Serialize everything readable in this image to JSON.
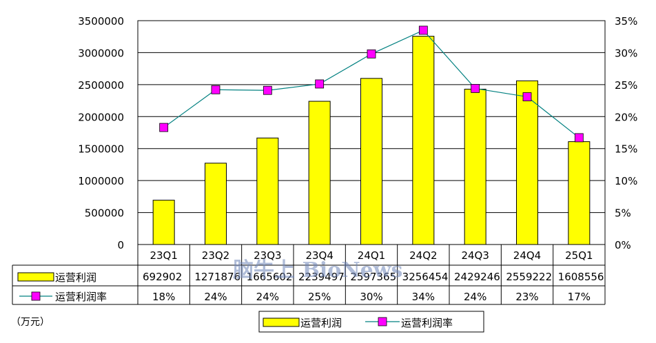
{
  "chart_data": {
    "type": "bar",
    "categories": [
      "23Q1",
      "23Q2",
      "23Q3",
      "23Q4",
      "24Q1",
      "24Q2",
      "24Q3",
      "24Q4",
      "25Q1"
    ],
    "series": [
      {
        "name": "运营利润",
        "type": "bar",
        "axis": "left",
        "color": "#ffff00",
        "values": [
          692902,
          1271876,
          1665602,
          2239497,
          2597365,
          3256454,
          2429246,
          2559222,
          1608556
        ],
        "table_labels": [
          "692902",
          "1271876",
          "1665602",
          "2239497",
          "2597365",
          "3256454",
          "2429246",
          "2559222",
          "1608556"
        ]
      },
      {
        "name": "运营利润率",
        "type": "line",
        "axis": "right",
        "color": "#ff00ff",
        "line_color": "#008080",
        "values": [
          18.3,
          24.2,
          24.1,
          25.1,
          29.8,
          33.5,
          24.4,
          23.1,
          16.7
        ],
        "table_labels": [
          "18%",
          "24%",
          "24%",
          "25%",
          "30%",
          "34%",
          "24%",
          "23%",
          "17%"
        ]
      }
    ],
    "y_left": {
      "lim": [
        0,
        3500000
      ],
      "ticks": [
        "0",
        "500000",
        "1000000",
        "1500000",
        "2000000",
        "2500000",
        "3000000",
        "3500000"
      ]
    },
    "y_right": {
      "lim": [
        0,
        35
      ],
      "ticks": [
        "0%",
        "5%",
        "10%",
        "15%",
        "20%",
        "25%",
        "30%",
        "35%"
      ]
    },
    "grid": true,
    "legend": "bottom",
    "unit_note": "（万元）",
    "watermark": "脑牛上 BioNews"
  }
}
